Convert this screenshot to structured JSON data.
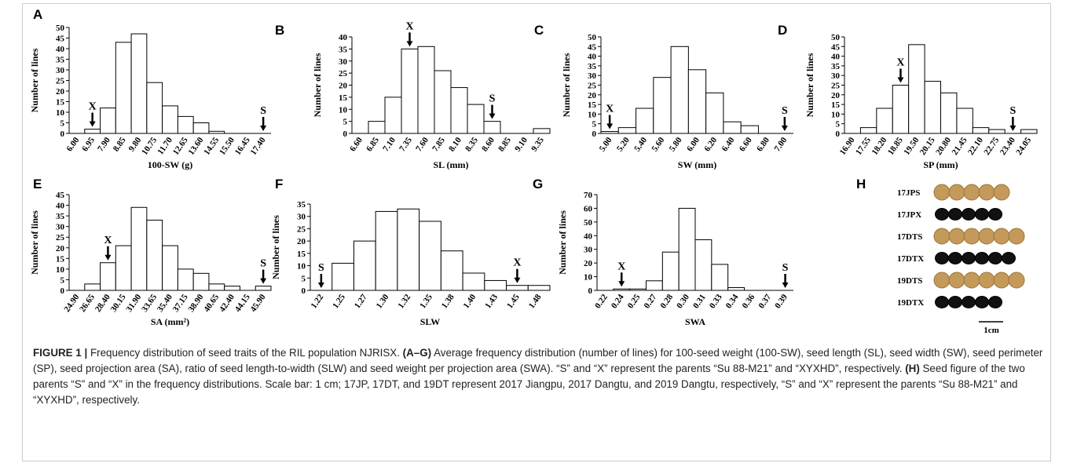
{
  "chart_data": [
    {
      "type": "bar",
      "panel": "A",
      "ylabel": "Number of lines",
      "xlabel": "100-SW (g)",
      "categories": [
        "6.00",
        "6.95",
        "7.90",
        "8.85",
        "9.80",
        "10.75",
        "11.70",
        "12.65",
        "13.60",
        "14.55",
        "15.50",
        "16.45",
        "17.40"
      ],
      "values": [
        0,
        2,
        12,
        43,
        47,
        24,
        13,
        8,
        5,
        1,
        0,
        0,
        0
      ],
      "ylim": [
        0,
        50
      ],
      "yticks": [
        0,
        5,
        10,
        15,
        20,
        25,
        30,
        35,
        40,
        45,
        50
      ],
      "annotations": [
        {
          "text": "X",
          "at": "6.95"
        },
        {
          "text": "S",
          "at": "17.40"
        }
      ]
    },
    {
      "type": "bar",
      "panel": "B",
      "ylabel": "Number of lines",
      "xlabel": "SL (mm)",
      "categories": [
        "6.60",
        "6.85",
        "7.10",
        "7.35",
        "7.60",
        "7.85",
        "8.10",
        "8.35",
        "8.60",
        "8.85",
        "9.10",
        "9.35"
      ],
      "values": [
        0,
        5,
        15,
        35,
        36,
        26,
        19,
        12,
        5,
        0,
        0,
        2
      ],
      "ylim": [
        0,
        40
      ],
      "yticks": [
        0,
        5,
        10,
        15,
        20,
        25,
        30,
        35,
        40
      ],
      "annotations": [
        {
          "text": "X",
          "at": "7.35"
        },
        {
          "text": "S",
          "at": "8.60"
        }
      ]
    },
    {
      "type": "bar",
      "panel": "C",
      "ylabel": "Number of lines",
      "xlabel": "SW (mm)",
      "categories": [
        "5.00",
        "5.20",
        "5.40",
        "5.60",
        "5.80",
        "6.00",
        "6.20",
        "6.40",
        "6.60",
        "6.80",
        "7.00"
      ],
      "values": [
        1,
        3,
        13,
        29,
        45,
        33,
        21,
        6,
        4,
        0,
        0
      ],
      "ylim": [
        0,
        50
      ],
      "yticks": [
        0,
        5,
        10,
        15,
        20,
        25,
        30,
        35,
        40,
        45,
        50
      ],
      "annotations": [
        {
          "text": "X",
          "at": "5.00"
        },
        {
          "text": "S",
          "at": "7.00"
        }
      ]
    },
    {
      "type": "bar",
      "panel": "D",
      "ylabel": "Number of lines",
      "xlabel": "SP (mm)",
      "categories": [
        "16.90",
        "17.55",
        "18.20",
        "18.85",
        "19.50",
        "20.15",
        "20.80",
        "21.45",
        "22.10",
        "22.75",
        "23.40",
        "24.05"
      ],
      "values": [
        0,
        3,
        13,
        25,
        46,
        27,
        21,
        13,
        3,
        2,
        0,
        2
      ],
      "ylim": [
        0,
        50
      ],
      "yticks": [
        0,
        5,
        10,
        15,
        20,
        25,
        30,
        35,
        40,
        45,
        50
      ],
      "annotations": [
        {
          "text": "X",
          "at": "18.85"
        },
        {
          "text": "S",
          "at": "23.40"
        }
      ]
    },
    {
      "type": "bar",
      "panel": "E",
      "ylabel": "Number of lines",
      "xlabel": "SA (mm²)",
      "categories": [
        "24.90",
        "26.65",
        "28.40",
        "30.15",
        "31.90",
        "33.65",
        "35.40",
        "37.15",
        "38.90",
        "40.65",
        "42.40",
        "44.15",
        "45.90"
      ],
      "values": [
        0,
        3,
        13,
        21,
        39,
        33,
        21,
        10,
        8,
        3,
        2,
        0,
        2
      ],
      "ylim": [
        0,
        45
      ],
      "yticks": [
        0,
        5,
        10,
        15,
        20,
        25,
        30,
        35,
        40,
        45
      ],
      "annotations": [
        {
          "text": "X",
          "at": "28.40"
        },
        {
          "text": "S",
          "at": "45.90"
        }
      ]
    },
    {
      "type": "bar",
      "panel": "F",
      "ylabel": "Number of lines",
      "xlabel": "SLW",
      "categories": [
        "1.22",
        "1.25",
        "1.27",
        "1.30",
        "1.32",
        "1.35",
        "1.38",
        "1.40",
        "1.43",
        "1.45",
        "1.48"
      ],
      "values": [
        0,
        11,
        20,
        32,
        33,
        28,
        16,
        7,
        4,
        2,
        2
      ],
      "ylim": [
        0,
        35
      ],
      "yticks": [
        0,
        5,
        10,
        15,
        20,
        25,
        30,
        35
      ],
      "annotations": [
        {
          "text": "S",
          "at": "1.22"
        },
        {
          "text": "X",
          "at": "1.45"
        }
      ]
    },
    {
      "type": "bar",
      "panel": "G",
      "ylabel": "Number of lines",
      "xlabel": "SWA",
      "categories": [
        "0.22",
        "0.24",
        "0.25",
        "0.27",
        "0.28",
        "0.30",
        "0.31",
        "0.33",
        "0.34",
        "0.36",
        "0.37",
        "0.39"
      ],
      "values": [
        0,
        1,
        1,
        7,
        28,
        60,
        37,
        19,
        2,
        0,
        0,
        0
      ],
      "ylim": [
        0,
        70
      ],
      "yticks": [
        0,
        10,
        20,
        30,
        40,
        50,
        60,
        70
      ],
      "annotations": [
        {
          "text": "X",
          "at": "0.24"
        },
        {
          "text": "S",
          "at": "0.39"
        }
      ]
    }
  ],
  "seed_panel": {
    "panel": "H",
    "labels": [
      "17JPS",
      "17JPX",
      "17DTS",
      "17DTX",
      "19DTS",
      "19DTX"
    ],
    "scale_label": "1cm"
  },
  "caption": [
    {
      "text": "FIGURE 1 |",
      "bold": true
    },
    {
      "text": " Frequency distribution of seed traits of the RIL population NJRISX. ",
      "bold": false
    },
    {
      "text": "(A–G)",
      "bold": true
    },
    {
      "text": " Average frequency distribution (number of lines) for 100-seed weight (100-SW), seed length (SL), seed width (SW), seed perimeter (SP), seed projection area (SA), ratio of seed length-to-width (SLW) and seed weight per projection area (SWA). “S” and “X” represent the parents “Su 88-M21” and “XYXHD”, respectively. ",
      "bold": false
    },
    {
      "text": "(H)",
      "bold": true
    },
    {
      "text": " Seed figure of the two parents “S” and “X” in the frequency distributions. Scale bar: 1 cm; 17JP, 17DT, and 19DT represent 2017 Jiangpu, 2017 Dangtu, and 2019 Dangtu, respectively, “S” and “X” represent the parents “Su 88-M21” and “XYXHD”, respectively.",
      "bold": false
    }
  ]
}
